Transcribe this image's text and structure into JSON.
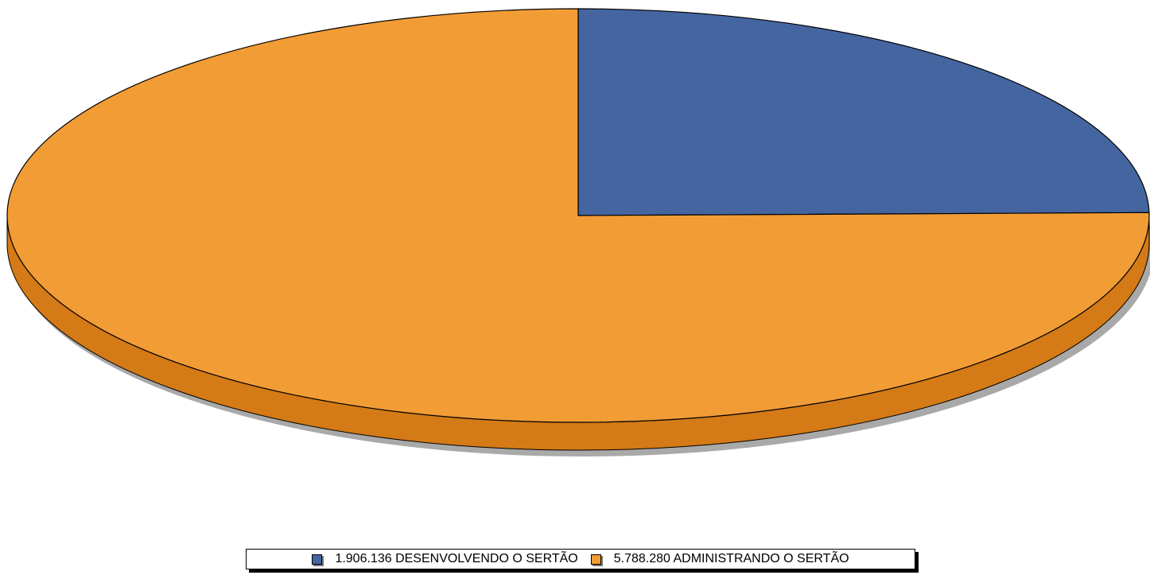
{
  "chart_data": {
    "type": "pie",
    "style": "3d",
    "title": "",
    "categories": [
      "1.906.136 DESENVOLVENDO O SERTÃO",
      "5.788.280 ADMINISTRANDO O SERTÃO"
    ],
    "values": [
      1906136,
      5788280
    ],
    "colors": [
      "#4465a0",
      "#f29c36"
    ],
    "side_colors": [
      "#2d4a7a",
      "#d47a16"
    ],
    "legend_position": "bottom"
  },
  "legend": {
    "items": [
      {
        "label": "1.906.136 DESENVOLVENDO O SERTÃO",
        "color": "#4465a0"
      },
      {
        "label": "5.788.280 ADMINISTRANDO O SERTÃO",
        "color": "#f29c36"
      }
    ]
  }
}
